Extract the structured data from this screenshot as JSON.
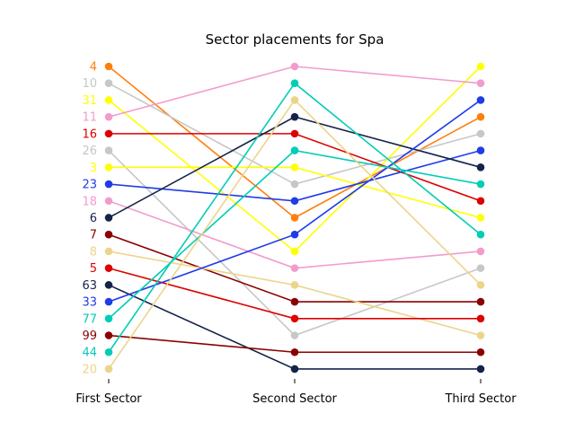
{
  "chart_data": {
    "type": "line",
    "title": "Sector placements for Spa",
    "xlabel": "",
    "ylabel": "",
    "categories": [
      "First Sector",
      "Second Sector",
      "Third Sector"
    ],
    "positions": [
      1,
      2,
      3,
      4,
      5,
      6,
      7,
      8,
      9,
      10,
      11,
      12,
      13,
      14,
      15,
      16,
      17,
      18
    ],
    "y_inverted": true,
    "grid": false,
    "series": [
      {
        "name": "4",
        "color": "#ff7f0e",
        "values": [
          1,
          10,
          4
        ]
      },
      {
        "name": "10",
        "color": "#c7c7c7",
        "values": [
          2,
          8,
          5
        ]
      },
      {
        "name": "31",
        "color": "#ffff00",
        "values": [
          3,
          12,
          1
        ]
      },
      {
        "name": "11",
        "color": "#f29ccc",
        "values": [
          4,
          1,
          2
        ]
      },
      {
        "name": "16",
        "color": "#dd0000",
        "values": [
          5,
          5,
          9
        ]
      },
      {
        "name": "26",
        "color": "#c7c7c7",
        "values": [
          6,
          17,
          13
        ]
      },
      {
        "name": "3",
        "color": "#ffff00",
        "values": [
          7,
          7,
          10
        ]
      },
      {
        "name": "23",
        "color": "#1f3ce6",
        "values": [
          8,
          9,
          6
        ]
      },
      {
        "name": "18",
        "color": "#f29ccc",
        "values": [
          9,
          13,
          12
        ]
      },
      {
        "name": "6",
        "color": "#15234a",
        "values": [
          10,
          4,
          7
        ]
      },
      {
        "name": "7",
        "color": "#8b0000",
        "values": [
          11,
          15,
          15
        ]
      },
      {
        "name": "8",
        "color": "#ecd48a",
        "values": [
          12,
          14,
          17
        ]
      },
      {
        "name": "5",
        "color": "#dd0000",
        "values": [
          13,
          16,
          16
        ]
      },
      {
        "name": "63",
        "color": "#15234a",
        "values": [
          14,
          19,
          19
        ]
      },
      {
        "name": "33",
        "color": "#1f3ce6",
        "values": [
          15,
          11,
          3
        ]
      },
      {
        "name": "77",
        "color": "#00cdb5",
        "values": [
          16,
          6,
          8
        ]
      },
      {
        "name": "99",
        "color": "#8b0000",
        "values": [
          17,
          18,
          18
        ]
      },
      {
        "name": "44",
        "color": "#00cdb5",
        "values": [
          18,
          2,
          11
        ]
      },
      {
        "name": "20",
        "color": "#ecd48a",
        "values": [
          19,
          3,
          14
        ]
      }
    ]
  }
}
